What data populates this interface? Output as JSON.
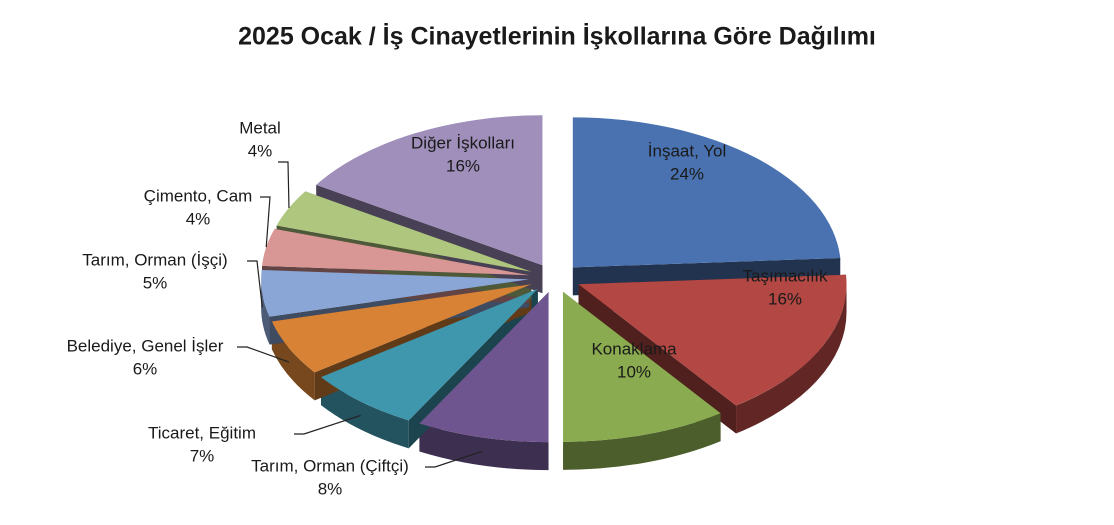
{
  "chart_data": {
    "type": "pie",
    "title": "2025 Ocak / İş Cinayetlerinin İşkollarına Göre Dağılımı",
    "categories": [
      "İnşaat, Yol",
      "Taşımacılık",
      "Konaklama",
      "Tarım, Orman (Çiftçi)",
      "Ticaret, Eğitim",
      "Belediye, Genel İşler",
      "Tarım, Orman (İşçi)",
      "Çimento, Cam",
      "Metal",
      "Diğer İşkolları"
    ],
    "values": [
      24,
      16,
      10,
      8,
      7,
      6,
      5,
      4,
      4,
      16
    ],
    "value_labels": [
      "24%",
      "16%",
      "10%",
      "8%",
      "7%",
      "6%",
      "5%",
      "4%",
      "4%",
      "16%"
    ],
    "colors": [
      "#4a72b0",
      "#b24743",
      "#8aab4f",
      "#6f558f",
      "#3f97ad",
      "#d88236",
      "#8aa6d6",
      "#d89694",
      "#aec67e",
      "#9f8fba"
    ]
  }
}
